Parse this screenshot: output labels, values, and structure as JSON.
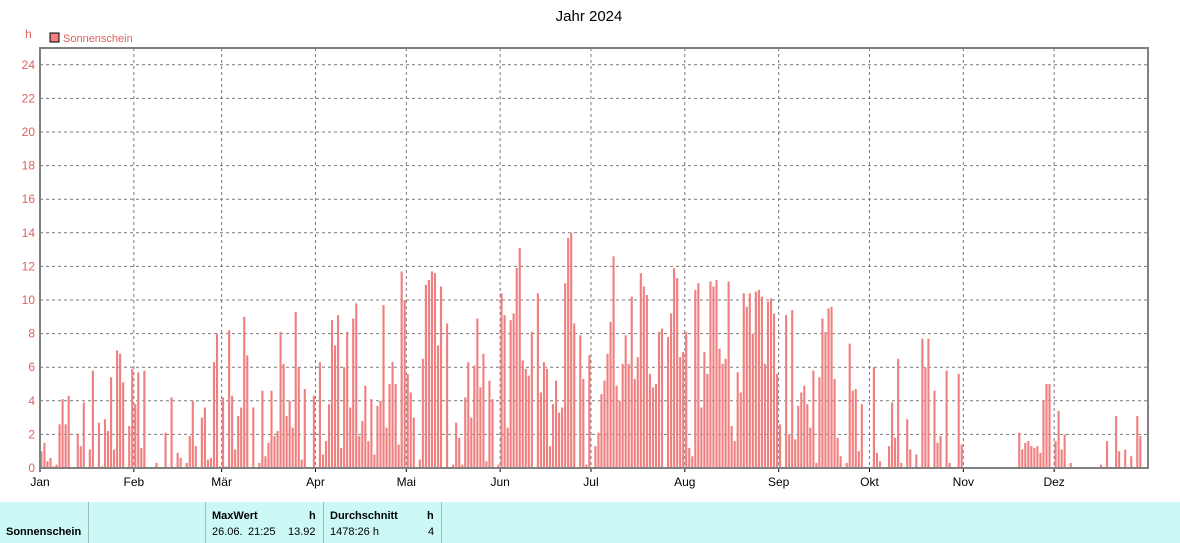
{
  "chart_data": {
    "type": "bar",
    "title": "Jahr 2024",
    "ylabel": "h",
    "ylim": [
      0,
      25
    ],
    "yticks": [
      0,
      2,
      4,
      6,
      8,
      10,
      12,
      14,
      16,
      18,
      20,
      22,
      24
    ],
    "grid": true,
    "legend_position": "top-left",
    "months": [
      "Jan",
      "Feb",
      "Mär",
      "Apr",
      "Mai",
      "Jun",
      "Jul",
      "Aug",
      "Sep",
      "Okt",
      "Nov",
      "Dez"
    ],
    "month_days": [
      31,
      29,
      31,
      30,
      31,
      30,
      31,
      31,
      30,
      31,
      30,
      31
    ],
    "series": [
      {
        "name": "Sonnenschein",
        "color": "#f08080",
        "values": [
          1.0,
          1.5,
          0.4,
          0.6,
          0.1,
          0.2,
          2.6,
          4.1,
          2.6,
          4.3,
          0.0,
          0.0,
          2.0,
          1.3,
          3.9,
          0.0,
          1.1,
          5.8,
          0.0,
          2.7,
          0.1,
          2.9,
          2.2,
          5.4,
          1.1,
          7.0,
          6.8,
          5.1,
          0.0,
          2.5,
          5.9,
          3.8,
          5.7,
          1.2,
          5.8,
          0.0,
          0.0,
          0.0,
          0.3,
          0.0,
          0.0,
          2.1,
          0.0,
          4.2,
          0.0,
          0.9,
          0.6,
          0.0,
          0.3,
          1.9,
          4.0,
          1.3,
          0.0,
          3.0,
          3.6,
          0.5,
          0.6,
          6.3,
          8.0,
          0.1,
          4.2,
          0.1,
          8.2,
          4.3,
          1.1,
          3.1,
          3.6,
          9.0,
          6.7,
          0.0,
          3.6,
          0.0,
          0.3,
          4.6,
          0.7,
          1.5,
          4.6,
          1.9,
          2.2,
          8.1,
          6.2,
          3.1,
          4.0,
          2.4,
          9.3,
          6.0,
          0.5,
          4.7,
          0.0,
          0.0,
          4.3,
          0.0,
          6.3,
          0.8,
          1.6,
          3.8,
          8.8,
          7.3,
          9.1,
          1.2,
          6.0,
          8.1,
          3.6,
          8.9,
          9.8,
          1.9,
          2.8,
          4.9,
          1.6,
          4.1,
          0.8,
          3.7,
          4.0,
          9.7,
          2.4,
          5.0,
          6.3,
          5.0,
          1.4,
          11.7,
          10.0,
          5.6,
          4.5,
          3.0,
          0.0,
          0.5,
          6.5,
          10.9,
          11.2,
          11.7,
          11.6,
          7.3,
          10.8,
          0.0,
          8.6,
          0.0,
          0.2,
          2.7,
          1.8,
          0.2,
          4.2,
          6.3,
          3.0,
          6.1,
          8.9,
          4.8,
          6.8,
          0.4,
          5.2,
          4.1,
          0.0,
          0.2,
          10.4,
          9.1,
          2.4,
          8.8,
          9.2,
          11.9,
          13.1,
          6.4,
          5.9,
          5.5,
          8.1,
          0.0,
          10.4,
          4.5,
          6.3,
          5.9,
          1.3,
          3.8,
          5.2,
          3.3,
          3.6,
          11.0,
          13.7,
          14.0,
          8.6,
          0.0,
          7.9,
          5.3,
          0.2,
          6.7,
          0.0,
          1.3,
          2.1,
          4.4,
          5.2,
          6.8,
          8.7,
          12.6,
          4.9,
          4.0,
          6.2,
          7.9,
          6.2,
          10.2,
          5.3,
          6.6,
          11.6,
          10.8,
          10.3,
          5.6,
          4.8,
          5.0,
          8.1,
          8.3,
          0.0,
          7.8,
          9.2,
          11.9,
          11.3,
          6.6,
          6.9,
          8.1,
          1.2,
          0.7,
          10.6,
          11.0,
          3.6,
          6.9,
          5.6,
          11.1,
          10.8,
          11.2,
          7.1,
          6.2,
          6.5,
          11.1,
          2.5,
          1.6,
          5.7,
          4.5,
          10.4,
          9.6,
          10.4,
          8.0,
          10.5,
          10.6,
          10.2,
          6.2,
          9.9,
          10.1,
          9.2,
          5.6,
          2.6,
          0.0,
          9.1,
          2.0,
          9.4,
          1.7,
          3.7,
          4.5,
          4.9,
          3.8,
          2.4,
          5.8,
          0.3,
          5.4,
          8.9,
          8.1,
          9.5,
          9.6,
          5.3,
          1.8,
          0.7,
          0.0,
          0.3,
          7.4,
          4.6,
          4.7,
          1.0,
          3.8,
          0.0,
          0.0,
          0.0,
          6.0,
          0.9,
          0.4,
          0.0,
          0.0,
          1.3,
          3.9,
          1.8,
          6.5,
          0.3,
          0.0,
          2.9,
          1.1,
          0.0,
          0.8,
          0.0,
          7.7,
          6.0,
          7.7,
          0.0,
          4.6,
          1.5,
          1.9,
          0.0,
          5.8,
          0.3,
          0.0,
          0.0,
          5.6,
          1.4,
          0.0,
          0.0,
          0.0,
          0.0,
          0.0,
          0.0,
          0.0,
          0.0,
          0.0,
          0.0,
          0.0,
          0.0,
          0.0,
          0.0,
          0.0,
          0.0,
          0.0,
          0.0,
          2.1,
          1.1,
          1.5,
          1.6,
          1.3,
          1.2,
          1.3,
          0.9,
          4.0,
          5.0,
          5.0,
          0.0,
          1.6,
          3.4,
          1.1,
          2.0,
          0.0,
          0.3,
          0.0,
          0.0,
          0.0,
          0.0,
          0.0,
          0.0,
          0.0,
          0.0,
          0.0,
          0.2,
          0.0,
          1.6,
          0.0,
          0.0,
          3.1,
          1.0,
          0.0,
          1.1,
          0.0,
          0.7,
          0.0,
          3.1,
          1.9,
          0.0
        ]
      }
    ]
  },
  "stats": {
    "row_label": "Sonnenschein",
    "max_header": "MaxWert",
    "max_unit": "h",
    "max_date": "26.06.",
    "max_time": "21:25",
    "max_value": "13.92",
    "avg_header": "Durchschnitt",
    "avg_unit": "h",
    "avg_total": "1478:26 h",
    "avg_value": "4"
  }
}
